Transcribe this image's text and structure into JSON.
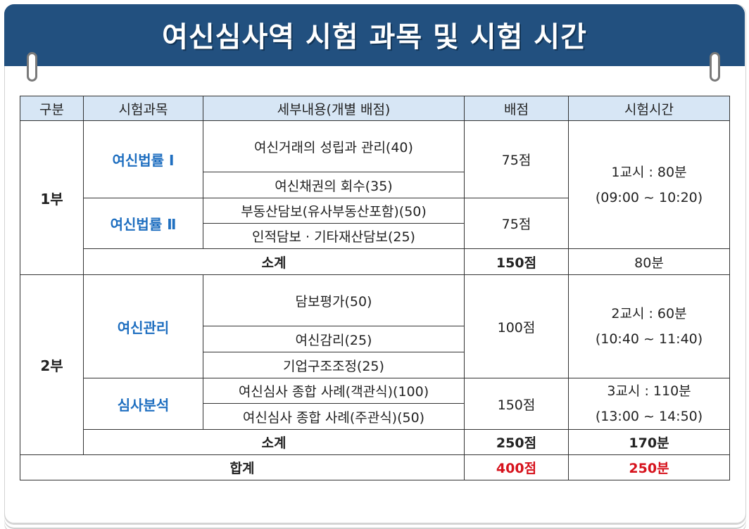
{
  "title": "여신심사역 시험 과목 및 시험 시간",
  "headers": [
    "구분",
    "시험과목",
    "세부내용(개별 배점)",
    "배점",
    "시험시간"
  ],
  "part1": {
    "label": "1부",
    "subject1": {
      "name": "여신법률 Ⅰ",
      "details": [
        "여신거래의 성립과 관리(40)",
        "여신채권의 회수(35)"
      ],
      "score": "75점"
    },
    "subject2": {
      "name": "여신법률 Ⅱ",
      "details": [
        "부동산담보(유사부동산포함)(50)",
        "인적담보 · 기타재산담보(25)"
      ],
      "score": "75점"
    },
    "time_line1": "1교시 : 80분",
    "time_line2": "(09:00 ~ 10:20)",
    "subtotal_label": "소계",
    "subtotal_score": "150점",
    "subtotal_time": "80분"
  },
  "part2": {
    "label": "2부",
    "subject1": {
      "name": "여신관리",
      "details": [
        "담보평가(50)",
        "여신감리(25)",
        "기업구조조정(25)"
      ],
      "score": "100점",
      "time_line1": "2교시 : 60분",
      "time_line2": "(10:40 ~ 11:40)"
    },
    "subject2": {
      "name": "심사분석",
      "details": [
        "여신심사 종합 사례(객관식)(100)",
        "여신심사 종합 사례(주관식)(50)"
      ],
      "score": "150점",
      "time_line1": "3교시 : 110분",
      "time_line2": "(13:00 ~ 14:50)"
    },
    "subtotal_label": "소계",
    "subtotal_score": "250점",
    "subtotal_time": "170분"
  },
  "total": {
    "label": "합계",
    "score": "400점",
    "time": "250분"
  },
  "colors": {
    "header_band": "#22507f",
    "table_header_bg": "#d7e6f5",
    "subject_text": "#1f6fc0",
    "total_text": "#d6121c"
  }
}
